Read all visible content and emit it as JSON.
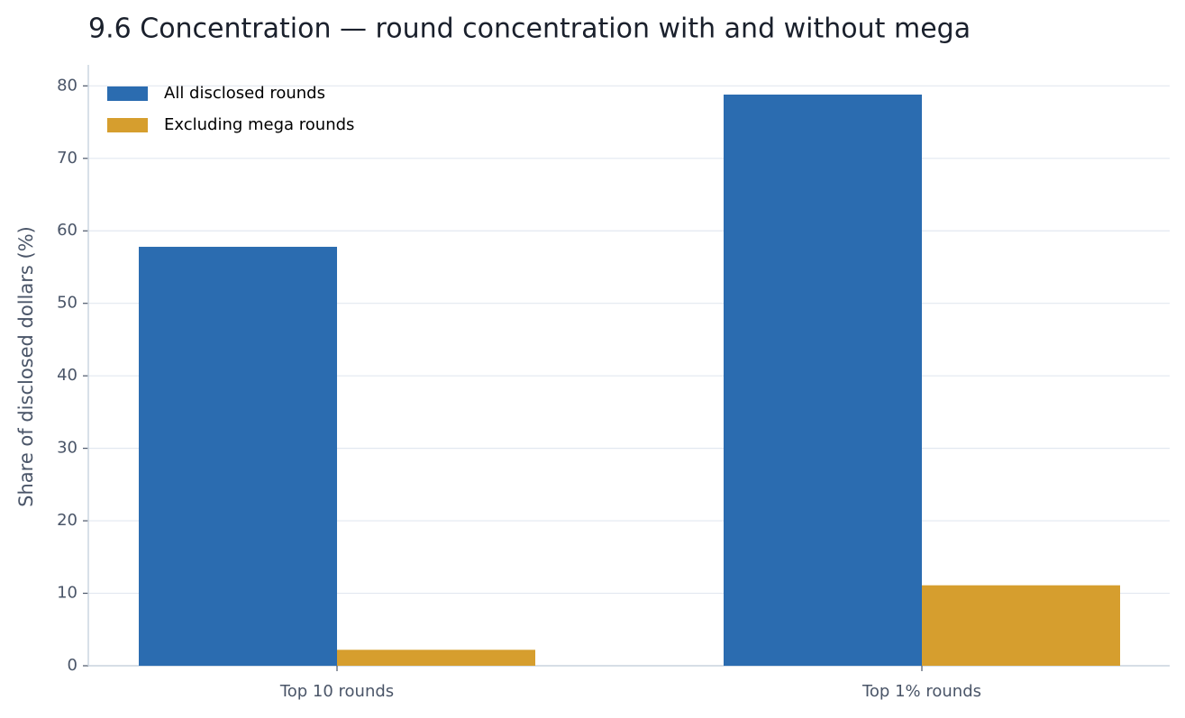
{
  "chart_data": {
    "type": "bar",
    "title": "9.6 Concentration — round concentration with and without mega",
    "y_label": "Share of disclosed dollars (%)",
    "categories": [
      "Top 10 rounds",
      "Top 1% rounds"
    ],
    "series": [
      {
        "name": "All disclosed rounds",
        "color": "#2b6cb0",
        "values": [
          57.8,
          78.8
        ]
      },
      {
        "name": "Excluding mega rounds",
        "color": "#d69e2e",
        "values": [
          2.2,
          11.1
        ]
      }
    ],
    "ylim": [
      0,
      82.9
    ],
    "yticks": [
      0,
      10,
      20,
      30,
      40,
      50,
      60,
      70,
      80
    ],
    "grid": true,
    "legend": "upper-left"
  }
}
